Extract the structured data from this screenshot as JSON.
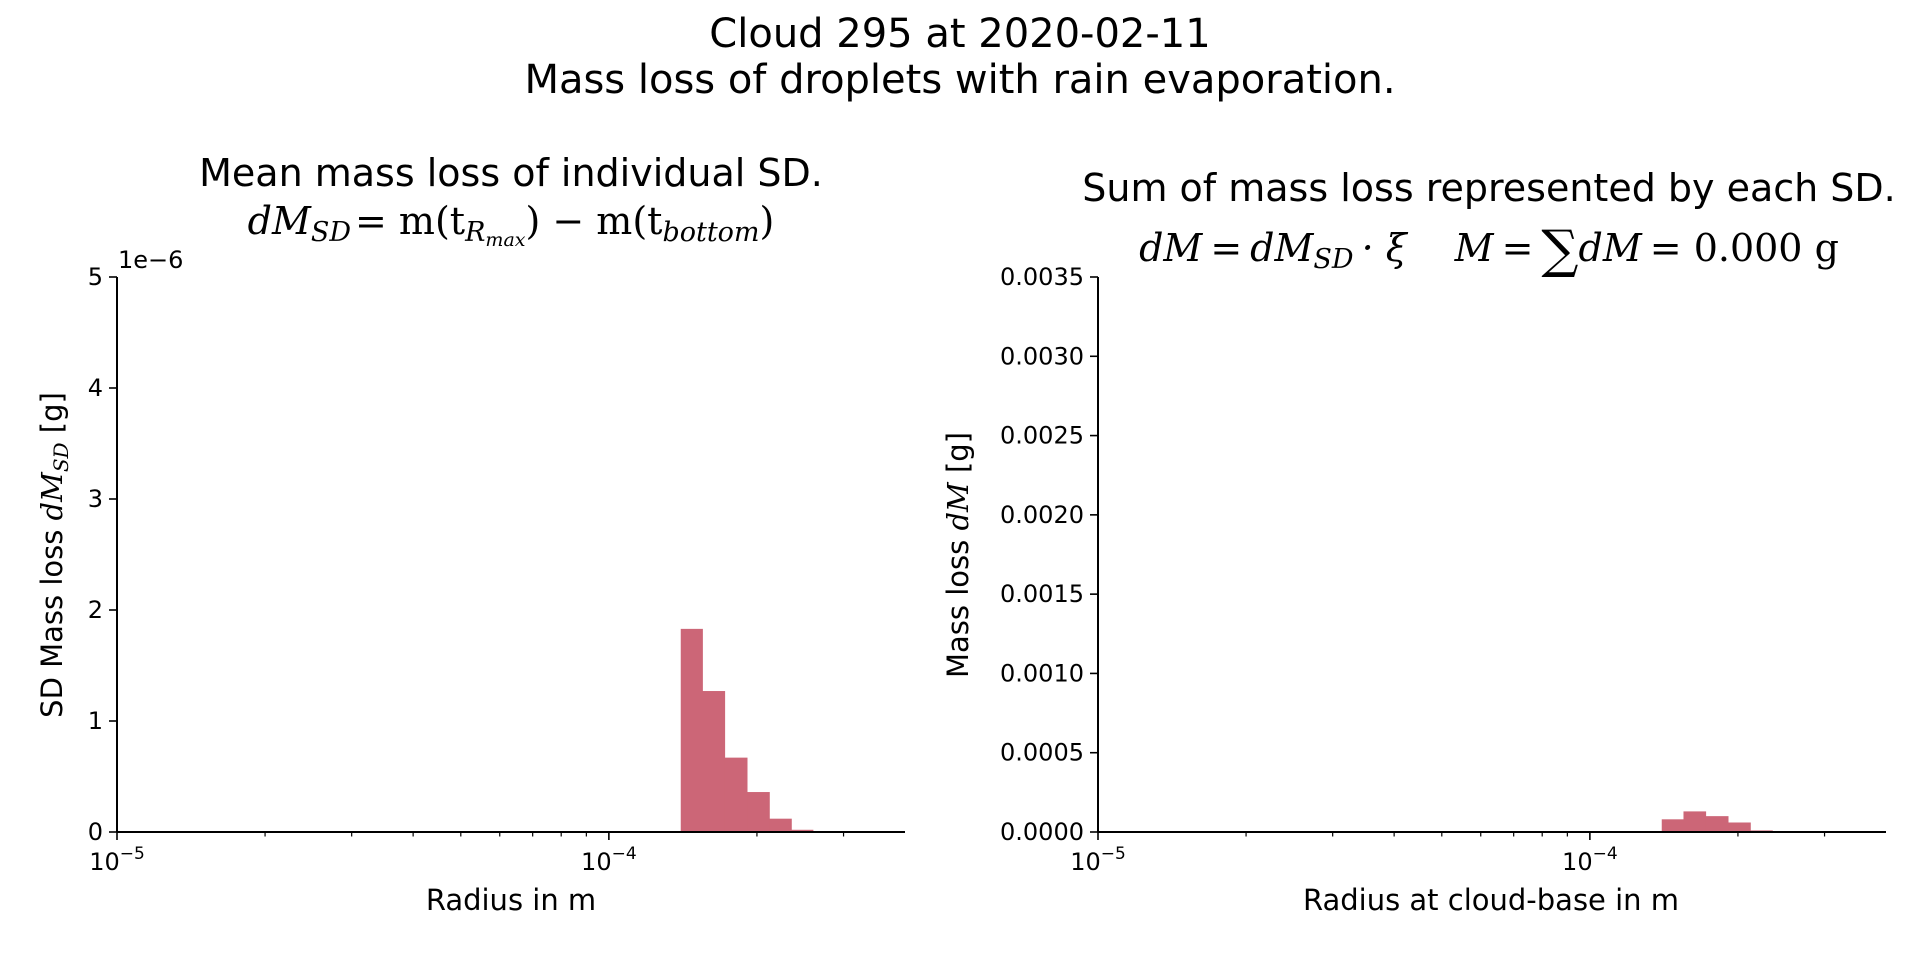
{
  "figure": {
    "suptitle_line1": "Cloud 295 at 2020-02-11",
    "suptitle_line2": "Mass loss of droplets with rain evaporation."
  },
  "bar_color": "#cc6677",
  "chart_data": [
    {
      "type": "bar",
      "title": "Mean mass loss of individual SD.",
      "formula": {
        "lhs": "dM",
        "lhs_sub": "SD",
        "eq": "= m(t",
        "sub1": "R",
        "sub1_sub": "max",
        "mid": ") − m(t",
        "sub2": "bottom",
        "end": ")"
      },
      "xlabel": "Radius in m",
      "ylabel_prefix": "SD Mass loss ",
      "ylabel_math": "dM",
      "ylabel_math_sub": "SD",
      "ylabel_unit": " [g]",
      "xscale": "log",
      "xlim": [
        1e-05,
        0.0004
      ],
      "ylim": [
        0,
        5e-06
      ],
      "y_offset_text": "1e−6",
      "x_ticks": [
        {
          "base": "10",
          "exp": "−5",
          "value": 1e-05
        },
        {
          "base": "10",
          "exp": "−4",
          "value": 0.0001
        }
      ],
      "y_ticks": [
        "0",
        "1",
        "2",
        "3",
        "4",
        "5"
      ],
      "y_tick_values": [
        0,
        1e-06,
        2e-06,
        3e-06,
        4e-06,
        5e-06
      ],
      "bin_edges": [
        0.00014,
        0.000155,
        0.000172,
        0.000191,
        0.000212,
        0.000235,
        0.00026
      ],
      "values": [
        1.83e-06,
        1.27e-06,
        6.7e-07,
        3.6e-07,
        1.2e-07,
        2e-08
      ]
    },
    {
      "type": "bar",
      "title": "Sum of mass loss represented by each SD.",
      "formula": {
        "part1": "dM",
        "part2": "=",
        "part3": "dM",
        "part3_sub": "SD",
        "part4": "· ξ",
        "part5": "M",
        "part6": "=",
        "part7": "∑",
        "part8": "dM",
        "part9": "= 0.000 g"
      },
      "xlabel": "Radius at cloud-base in m",
      "ylabel_prefix": "Mass loss ",
      "ylabel_math": "dM",
      "ylabel_math_sub": "",
      "ylabel_unit": " [g]",
      "xscale": "log",
      "xlim": [
        1e-05,
        0.0004
      ],
      "ylim": [
        0,
        0.0035
      ],
      "x_ticks": [
        {
          "base": "10",
          "exp": "−5",
          "value": 1e-05
        },
        {
          "base": "10",
          "exp": "−4",
          "value": 0.0001
        }
      ],
      "y_ticks": [
        "0.0000",
        "0.0005",
        "0.0010",
        "0.0015",
        "0.0020",
        "0.0025",
        "0.0030",
        "0.0035"
      ],
      "y_tick_values": [
        0,
        0.0005,
        0.001,
        0.0015,
        0.002,
        0.0025,
        0.003,
        0.0035
      ],
      "bin_edges": [
        0.00014,
        0.000155,
        0.000172,
        0.000191,
        0.000212,
        0.000235
      ],
      "values": [
        8e-05,
        0.00013,
        0.0001,
        6e-05,
        1e-05
      ]
    }
  ]
}
